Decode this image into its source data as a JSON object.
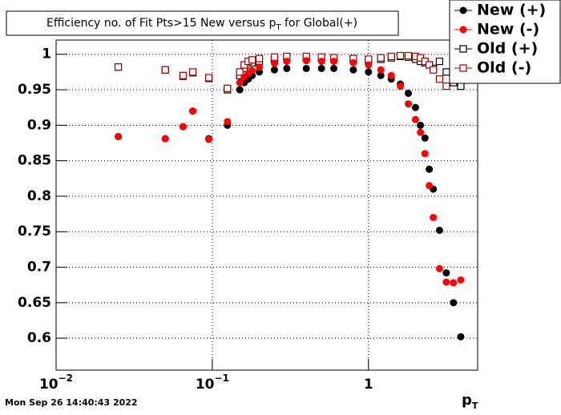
{
  "chart_data": {
    "type": "scatter",
    "title": [
      "Efficiency no. of Fit Pts>15 New versus p",
      "T",
      " for Global(+)"
    ],
    "x_label": [
      "p",
      "T"
    ],
    "timestamp": "Mon Sep 26 14:40:43 2022",
    "log_x": true,
    "grid": true,
    "legend": "top-right",
    "xlim": [
      0.01,
      5
    ],
    "ylim": [
      0.555,
      1.02
    ],
    "xticks": [
      {
        "value": 0.01,
        "label": "10",
        "exponent": "−2"
      },
      {
        "value": 0.1,
        "label": "10",
        "exponent": "−1"
      },
      1
    ],
    "yticks": [
      0.6,
      0.65,
      0.7,
      0.75,
      0.8,
      0.85,
      0.9,
      0.95,
      1
    ],
    "series": [
      {
        "name": "New (+)",
        "color": "#000000",
        "marker": "circle",
        "x": [
          0.025,
          0.05,
          0.065,
          0.075,
          0.095,
          0.125,
          0.15,
          0.16,
          0.17,
          0.18,
          0.2,
          0.25,
          0.3,
          0.4,
          0.5,
          0.6,
          0.8,
          1.0,
          1.2,
          1.4,
          1.6,
          1.8,
          2.0,
          2.15,
          2.3,
          2.45,
          2.6,
          2.85,
          3.15,
          3.5,
          3.9
        ],
        "values": [
          0.884,
          0.881,
          0.898,
          0.92,
          0.881,
          0.9,
          0.95,
          0.96,
          0.965,
          0.97,
          0.975,
          0.978,
          0.98,
          0.98,
          0.98,
          0.98,
          0.978,
          0.975,
          0.97,
          0.965,
          0.958,
          0.945,
          0.925,
          0.9,
          0.882,
          0.838,
          0.81,
          0.752,
          0.692,
          0.65,
          0.602
        ]
      },
      {
        "name": "New (-)",
        "color": "#ff0000",
        "marker": "circle",
        "x": [
          0.025,
          0.05,
          0.065,
          0.075,
          0.095,
          0.125,
          0.15,
          0.16,
          0.17,
          0.18,
          0.2,
          0.25,
          0.3,
          0.4,
          0.5,
          0.6,
          0.8,
          1.0,
          1.2,
          1.4,
          1.6,
          1.8,
          2.0,
          2.15,
          2.3,
          2.45,
          2.6,
          2.85,
          3.15,
          3.5,
          3.9
        ],
        "values": [
          0.884,
          0.881,
          0.898,
          0.92,
          0.88,
          0.905,
          0.96,
          0.968,
          0.973,
          0.977,
          0.982,
          0.987,
          0.99,
          0.991,
          0.99,
          0.99,
          0.988,
          0.985,
          0.978,
          0.97,
          0.955,
          0.93,
          0.908,
          0.89,
          0.86,
          0.815,
          0.77,
          0.698,
          0.679,
          0.678,
          0.682
        ]
      },
      {
        "name": "Old (+)",
        "color": "#000000",
        "marker": "open-square",
        "x": [
          0.025,
          0.05,
          0.065,
          0.075,
          0.095,
          0.125,
          0.15,
          0.16,
          0.17,
          0.18,
          0.2,
          0.25,
          0.3,
          0.4,
          0.5,
          0.6,
          0.8,
          1.0,
          1.2,
          1.4,
          1.6,
          1.8,
          2.0,
          2.15,
          2.3,
          2.45,
          2.6,
          2.85,
          3.15,
          3.5,
          3.9
        ],
        "values": [
          0.982,
          0.978,
          0.969,
          0.974,
          0.966,
          0.95,
          0.97,
          0.98,
          0.985,
          0.988,
          0.99,
          0.993,
          0.995,
          0.995,
          0.995,
          0.994,
          0.993,
          0.992,
          0.993,
          0.995,
          0.997,
          0.996,
          0.993,
          0.99,
          0.988,
          0.985,
          0.98,
          0.99,
          0.975,
          0.96,
          0.955
        ]
      },
      {
        "name": "Old (-)",
        "color": "#a00000",
        "marker": "open-square",
        "x": [
          0.025,
          0.05,
          0.065,
          0.075,
          0.095,
          0.125,
          0.15,
          0.16,
          0.17,
          0.18,
          0.2,
          0.25,
          0.3,
          0.4,
          0.5,
          0.6,
          0.8,
          1.0,
          1.2,
          1.4,
          1.6,
          1.8,
          2.0,
          2.15,
          2.3,
          2.45,
          2.6,
          2.85,
          3.15,
          3.5,
          3.9
        ],
        "values": [
          0.982,
          0.978,
          0.97,
          0.975,
          0.967,
          0.952,
          0.975,
          0.985,
          0.99,
          0.992,
          0.994,
          0.996,
          0.997,
          0.997,
          0.996,
          0.995,
          0.994,
          0.993,
          0.995,
          0.997,
          0.998,
          0.998,
          0.997,
          0.995,
          0.99,
          0.985,
          0.978,
          0.965,
          0.955,
          0.985,
          0.97
        ]
      }
    ]
  }
}
